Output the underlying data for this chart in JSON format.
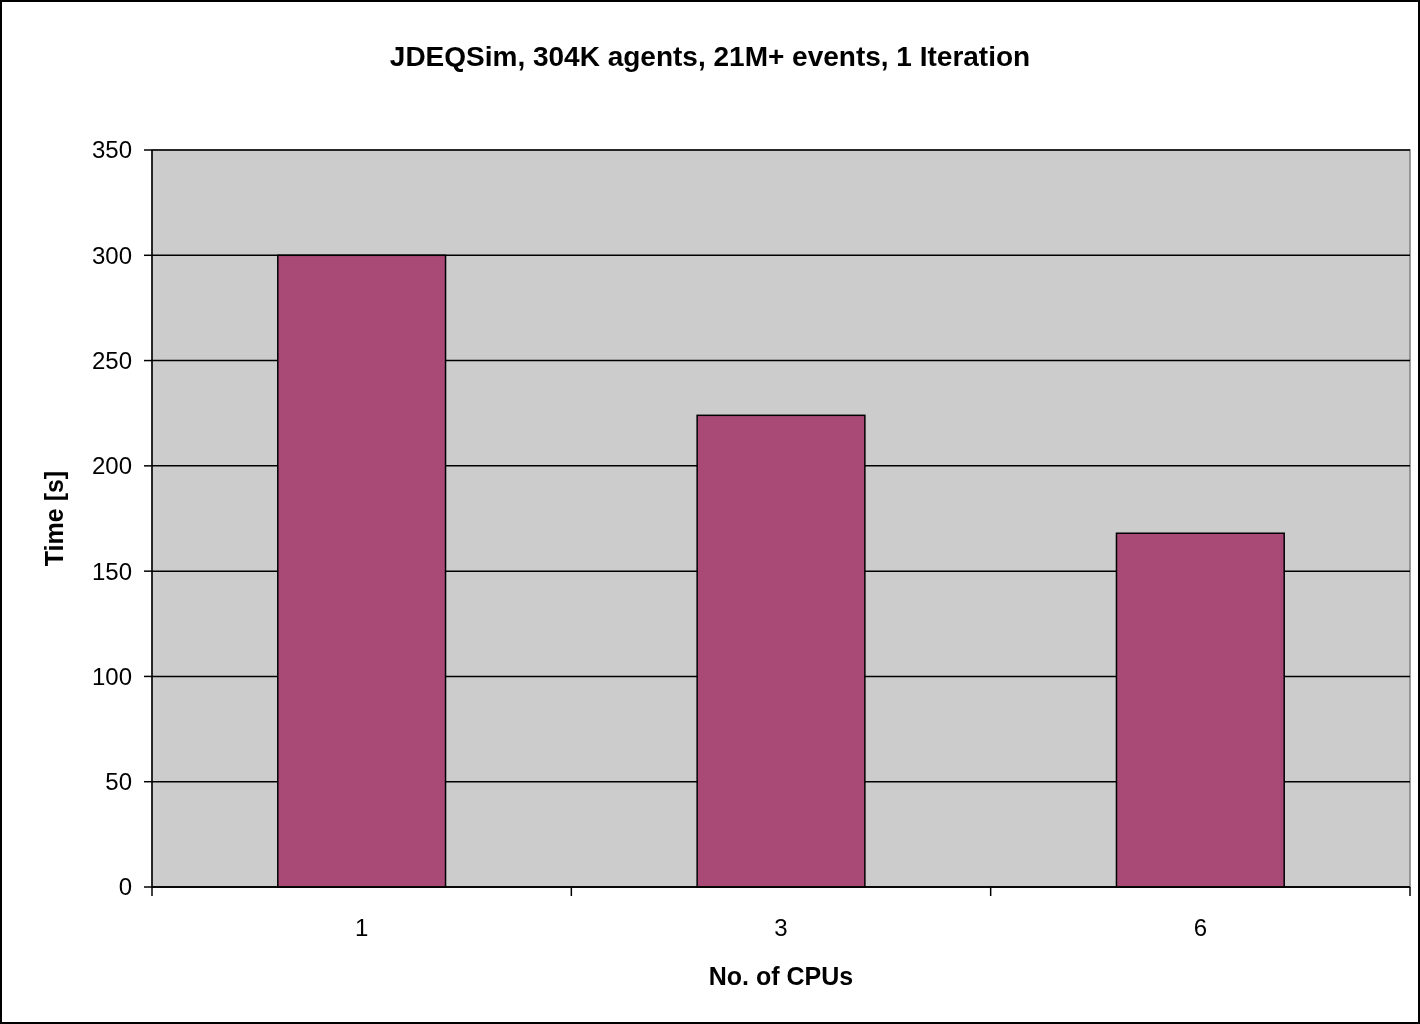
{
  "chart_data": {
    "type": "bar",
    "title": "JDEQSim, 304K agents, 21M+ events, 1 Iteration",
    "xlabel": "No. of CPUs",
    "ylabel": "Time [s]",
    "categories": [
      "1",
      "3",
      "6"
    ],
    "values": [
      300,
      224,
      168
    ],
    "color": "#a94a76",
    "ylim": [
      0,
      350
    ],
    "yticks": [
      0,
      50,
      100,
      150,
      200,
      250,
      300,
      350
    ],
    "grid": "y"
  }
}
